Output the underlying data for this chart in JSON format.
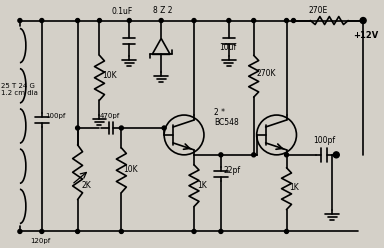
{
  "bg_color": "#d4d0c8",
  "lc": "#000000",
  "lw": 1.2,
  "labels": {
    "cap_01uF": "0.1uF",
    "zener": "8 Z 2",
    "res_270E": "270E",
    "vcc": "+12V",
    "coil": "25 T 24 G\n1.2 cm dia",
    "cap_100pf_left": "100pf",
    "cap_120pf": "120pf",
    "var_res_2K": "2K",
    "res_10K_left": "10K",
    "cap_470pf": "470pf",
    "transistors": "2 *\nBC548",
    "cap_10uf": "10uf",
    "res_270K": "270K",
    "res_1K_mid": "1K",
    "cap_22pf": "22pf",
    "res_1K_right": "1K",
    "cap_100pf_right": "100pf",
    "res_10K_top": "10K",
    "res_10K_bot": "10K"
  }
}
